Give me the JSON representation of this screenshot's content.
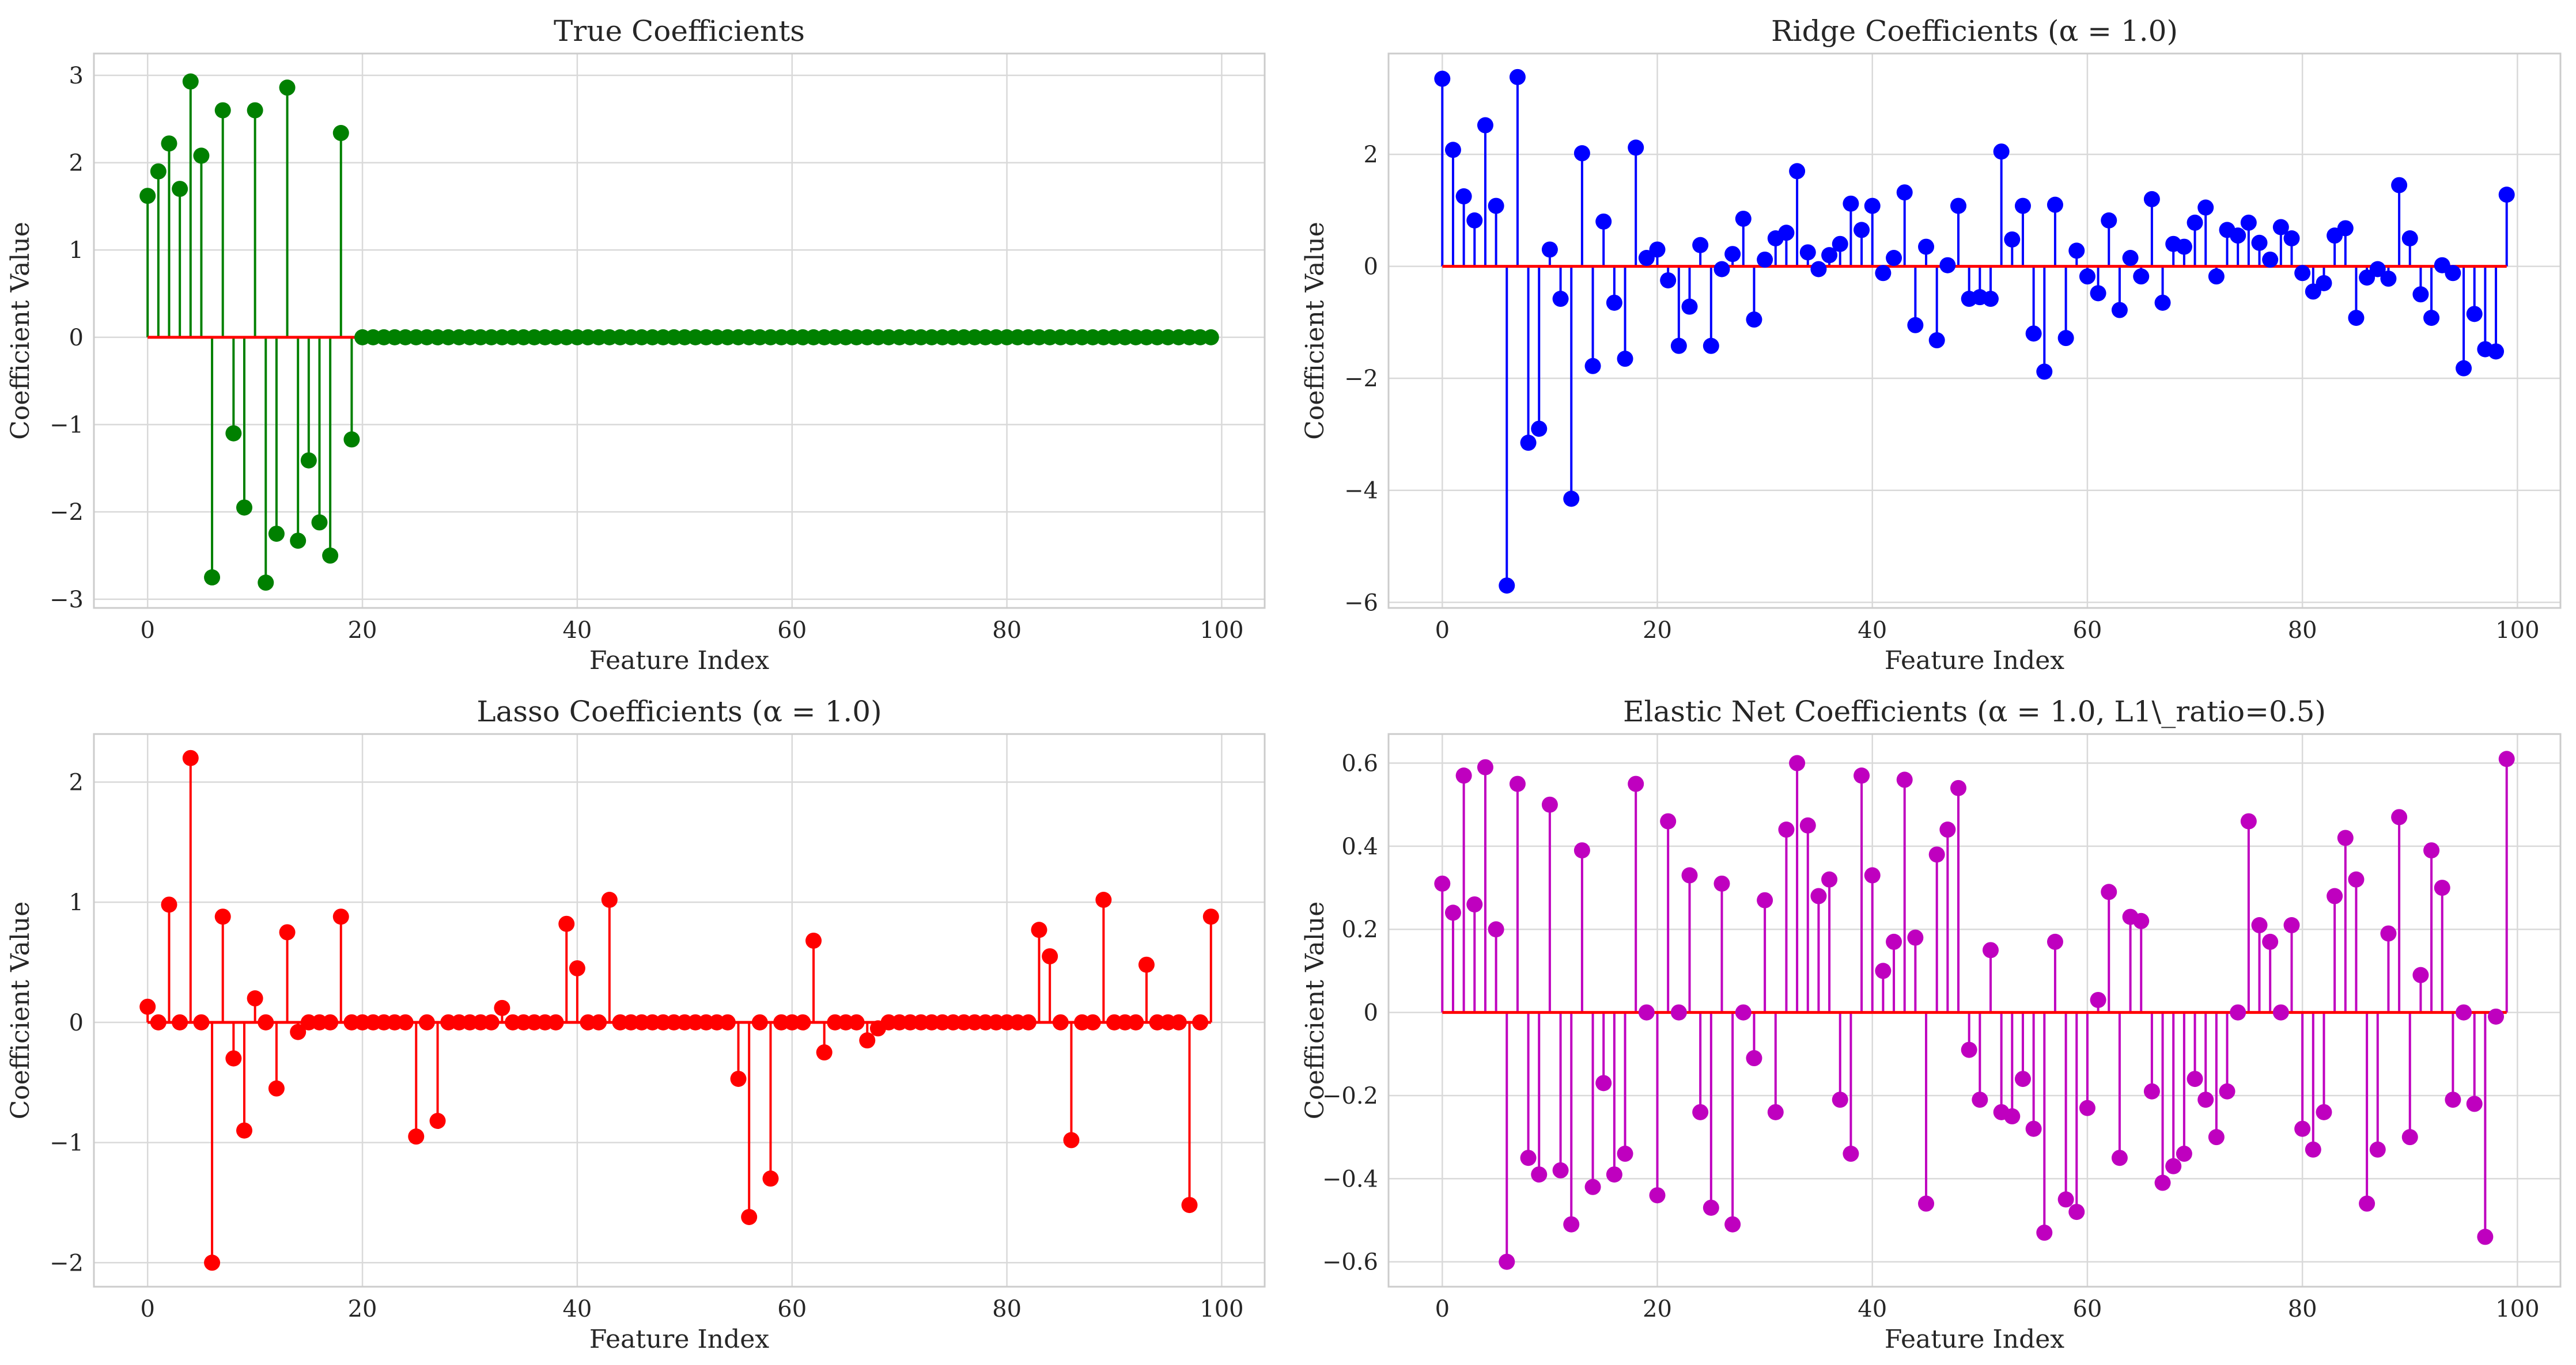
{
  "figure": {
    "background": "#ffffff"
  },
  "chart_data": [
    {
      "id": "true",
      "type": "stem",
      "title": "True Coefficients",
      "xlabel": "Feature Index",
      "ylabel": "Coefficient Value",
      "color": "#008000",
      "baseline_color": "#ff0000",
      "xlim": [
        -5,
        104
      ],
      "ylim": [
        -3.1,
        3.25
      ],
      "xticks": [
        0,
        20,
        40,
        60,
        80,
        100
      ],
      "yticks": [
        -3,
        -2,
        -1,
        0,
        1,
        2,
        3
      ],
      "grid": true,
      "x": [
        0,
        1,
        2,
        3,
        4,
        5,
        6,
        7,
        8,
        9,
        10,
        11,
        12,
        13,
        14,
        15,
        16,
        17,
        18,
        19,
        20,
        21,
        22,
        23,
        24,
        25,
        26,
        27,
        28,
        29,
        30,
        31,
        32,
        33,
        34,
        35,
        36,
        37,
        38,
        39,
        40,
        41,
        42,
        43,
        44,
        45,
        46,
        47,
        48,
        49,
        50,
        51,
        52,
        53,
        54,
        55,
        56,
        57,
        58,
        59,
        60,
        61,
        62,
        63,
        64,
        65,
        66,
        67,
        68,
        69,
        70,
        71,
        72,
        73,
        74,
        75,
        76,
        77,
        78,
        79,
        80,
        81,
        82,
        83,
        84,
        85,
        86,
        87,
        88,
        89,
        90,
        91,
        92,
        93,
        94,
        95,
        96,
        97,
        98,
        99
      ],
      "values": [
        1.62,
        1.9,
        2.22,
        1.7,
        2.93,
        2.08,
        -2.75,
        2.6,
        -1.1,
        -1.95,
        2.6,
        -2.81,
        -2.25,
        2.86,
        -2.33,
        -1.41,
        -2.12,
        -2.5,
        2.34,
        -1.17,
        0,
        0,
        0,
        0,
        0,
        0,
        0,
        0,
        0,
        0,
        0,
        0,
        0,
        0,
        0,
        0,
        0,
        0,
        0,
        0,
        0,
        0,
        0,
        0,
        0,
        0,
        0,
        0,
        0,
        0,
        0,
        0,
        0,
        0,
        0,
        0,
        0,
        0,
        0,
        0,
        0,
        0,
        0,
        0,
        0,
        0,
        0,
        0,
        0,
        0,
        0,
        0,
        0,
        0,
        0,
        0,
        0,
        0,
        0,
        0,
        0,
        0,
        0,
        0,
        0,
        0,
        0,
        0,
        0,
        0,
        0,
        0,
        0,
        0,
        0,
        0,
        0,
        0,
        0,
        0
      ]
    },
    {
      "id": "ridge",
      "type": "stem",
      "title": "Ridge Coefficients (α = 1.0)",
      "xlabel": "Feature Index",
      "ylabel": "Coefficient Value",
      "color": "#0000ff",
      "baseline_color": "#ff0000",
      "xlim": [
        -5,
        104
      ],
      "ylim": [
        -6.1,
        3.8
      ],
      "xticks": [
        0,
        20,
        40,
        60,
        80,
        100
      ],
      "yticks": [
        -6,
        -4,
        -2,
        0,
        2
      ],
      "grid": true,
      "x": [
        0,
        1,
        2,
        3,
        4,
        5,
        6,
        7,
        8,
        9,
        10,
        11,
        12,
        13,
        14,
        15,
        16,
        17,
        18,
        19,
        20,
        21,
        22,
        23,
        24,
        25,
        26,
        27,
        28,
        29,
        30,
        31,
        32,
        33,
        34,
        35,
        36,
        37,
        38,
        39,
        40,
        41,
        42,
        43,
        44,
        45,
        46,
        47,
        48,
        49,
        50,
        51,
        52,
        53,
        54,
        55,
        56,
        57,
        58,
        59,
        60,
        61,
        62,
        63,
        64,
        65,
        66,
        67,
        68,
        69,
        70,
        71,
        72,
        73,
        74,
        75,
        76,
        77,
        78,
        79,
        80,
        81,
        82,
        83,
        84,
        85,
        86,
        87,
        88,
        89,
        90,
        91,
        92,
        93,
        94,
        95,
        96,
        97,
        98,
        99
      ],
      "values": [
        3.35,
        2.08,
        1.25,
        0.82,
        2.52,
        1.08,
        -5.7,
        3.38,
        -3.15,
        -2.9,
        0.3,
        -0.58,
        -4.15,
        2.02,
        -1.78,
        0.8,
        -0.65,
        -1.65,
        2.12,
        0.15,
        0.3,
        -0.25,
        -1.42,
        -0.72,
        0.38,
        -1.42,
        -0.05,
        0.22,
        0.85,
        -0.95,
        0.12,
        0.5,
        0.6,
        1.7,
        0.25,
        -0.05,
        0.2,
        0.4,
        1.12,
        0.65,
        1.08,
        -0.12,
        0.15,
        1.32,
        -1.05,
        0.35,
        -1.32,
        0.02,
        1.08,
        -0.58,
        -0.55,
        -0.58,
        2.05,
        0.48,
        1.08,
        -1.2,
        -1.88,
        1.1,
        -1.28,
        0.28,
        -0.18,
        -0.48,
        0.82,
        -0.78,
        0.15,
        -0.18,
        1.2,
        -0.65,
        0.4,
        0.35,
        0.78,
        1.05,
        -0.18,
        0.65,
        0.55,
        0.78,
        0.42,
        0.12,
        0.7,
        0.5,
        -0.12,
        -0.45,
        -0.3,
        0.55,
        0.68,
        -0.92,
        -0.2,
        -0.05,
        -0.22,
        1.45,
        0.5,
        -0.5,
        -0.92,
        0.02,
        -0.12,
        -1.82,
        -0.85,
        -1.48,
        -1.52,
        1.28
      ]
    },
    {
      "id": "lasso",
      "type": "stem",
      "title": "Lasso Coefficients (α = 1.0)",
      "xlabel": "Feature Index",
      "ylabel": "Coefficient Value",
      "color": "#ff0000",
      "baseline_color": "#ff0000",
      "xlim": [
        -5,
        104
      ],
      "ylim": [
        -2.2,
        2.4
      ],
      "xticks": [
        0,
        20,
        40,
        60,
        80,
        100
      ],
      "yticks": [
        -2,
        -1,
        0,
        1,
        2
      ],
      "grid": true,
      "x": [
        0,
        1,
        2,
        3,
        4,
        5,
        6,
        7,
        8,
        9,
        10,
        11,
        12,
        13,
        14,
        15,
        16,
        17,
        18,
        19,
        20,
        21,
        22,
        23,
        24,
        25,
        26,
        27,
        28,
        29,
        30,
        31,
        32,
        33,
        34,
        35,
        36,
        37,
        38,
        39,
        40,
        41,
        42,
        43,
        44,
        45,
        46,
        47,
        48,
        49,
        50,
        51,
        52,
        53,
        54,
        55,
        56,
        57,
        58,
        59,
        60,
        61,
        62,
        63,
        64,
        65,
        66,
        67,
        68,
        69,
        70,
        71,
        72,
        73,
        74,
        75,
        76,
        77,
        78,
        79,
        80,
        81,
        82,
        83,
        84,
        85,
        86,
        87,
        88,
        89,
        90,
        91,
        92,
        93,
        94,
        95,
        96,
        97,
        98,
        99
      ],
      "values": [
        0.13,
        0,
        0.98,
        0,
        2.2,
        0,
        -2.0,
        0.88,
        -0.3,
        -0.9,
        0.2,
        0,
        -0.55,
        0.75,
        -0.08,
        0,
        0,
        0,
        0.88,
        0,
        0,
        0,
        0,
        0,
        0,
        -0.95,
        0,
        -0.82,
        0,
        0,
        0,
        0,
        0,
        0.12,
        0,
        0,
        0,
        0,
        0,
        0.82,
        0.45,
        0,
        0,
        1.02,
        0,
        0,
        0,
        0,
        0,
        0,
        0,
        0,
        0,
        0,
        0,
        -0.47,
        -1.62,
        0,
        -1.3,
        0,
        0,
        0,
        0.68,
        -0.25,
        0,
        0,
        0,
        -0.15,
        -0.05,
        0,
        0,
        0,
        0,
        0,
        0,
        0,
        0,
        0,
        0,
        0,
        0,
        0,
        0,
        0.77,
        0.55,
        0,
        -0.98,
        0,
        0,
        1.02,
        0,
        0,
        0,
        0.48,
        0,
        0,
        0,
        -1.52,
        0,
        0.88
      ]
    },
    {
      "id": "elastic",
      "type": "stem",
      "title": "Elastic Net Coefficients (α = 1.0, L1\\_ratio=0.5)",
      "xlabel": "Feature Index",
      "ylabel": "Coefficient Value",
      "color": "#bf00bf",
      "baseline_color": "#ff0000",
      "xlim": [
        -5,
        104
      ],
      "ylim": [
        -0.66,
        0.67
      ],
      "xticks": [
        0,
        20,
        40,
        60,
        80,
        100
      ],
      "yticks": [
        -0.6,
        -0.4,
        -0.2,
        0.0,
        0.2,
        0.4,
        0.6
      ],
      "grid": true,
      "x": [
        0,
        1,
        2,
        3,
        4,
        5,
        6,
        7,
        8,
        9,
        10,
        11,
        12,
        13,
        14,
        15,
        16,
        17,
        18,
        19,
        20,
        21,
        22,
        23,
        24,
        25,
        26,
        27,
        28,
        29,
        30,
        31,
        32,
        33,
        34,
        35,
        36,
        37,
        38,
        39,
        40,
        41,
        42,
        43,
        44,
        45,
        46,
        47,
        48,
        49,
        50,
        51,
        52,
        53,
        54,
        55,
        56,
        57,
        58,
        59,
        60,
        61,
        62,
        63,
        64,
        65,
        66,
        67,
        68,
        69,
        70,
        71,
        72,
        73,
        74,
        75,
        76,
        77,
        78,
        79,
        80,
        81,
        82,
        83,
        84,
        85,
        86,
        87,
        88,
        89,
        90,
        91,
        92,
        93,
        94,
        95,
        96,
        97,
        98,
        99
      ],
      "values": [
        0.31,
        0.24,
        0.57,
        0.26,
        0.59,
        0.2,
        -0.6,
        0.55,
        -0.35,
        -0.39,
        0.5,
        -0.38,
        -0.51,
        0.39,
        -0.42,
        -0.17,
        -0.39,
        -0.34,
        0.55,
        0.0,
        -0.44,
        0.46,
        0.0,
        0.33,
        -0.24,
        -0.47,
        0.31,
        -0.51,
        0.0,
        -0.11,
        0.27,
        -0.24,
        0.44,
        0.6,
        0.45,
        0.28,
        0.32,
        -0.21,
        -0.34,
        0.57,
        0.33,
        0.1,
        0.17,
        0.56,
        0.18,
        -0.46,
        0.38,
        0.44,
        0.54,
        -0.09,
        -0.21,
        0.15,
        -0.24,
        -0.25,
        -0.16,
        -0.28,
        -0.53,
        0.17,
        -0.45,
        -0.48,
        -0.23,
        0.03,
        0.29,
        -0.35,
        0.23,
        0.22,
        -0.19,
        -0.41,
        -0.37,
        -0.34,
        -0.16,
        -0.21,
        -0.3,
        -0.19,
        0.0,
        0.46,
        0.21,
        0.17,
        0.0,
        0.21,
        -0.28,
        -0.33,
        -0.24,
        0.28,
        0.42,
        0.32,
        -0.46,
        -0.33,
        0.19,
        0.47,
        -0.3,
        0.09,
        0.39,
        0.3,
        -0.21,
        0.0,
        -0.22,
        -0.54,
        -0.01,
        0.61
      ]
    }
  ]
}
